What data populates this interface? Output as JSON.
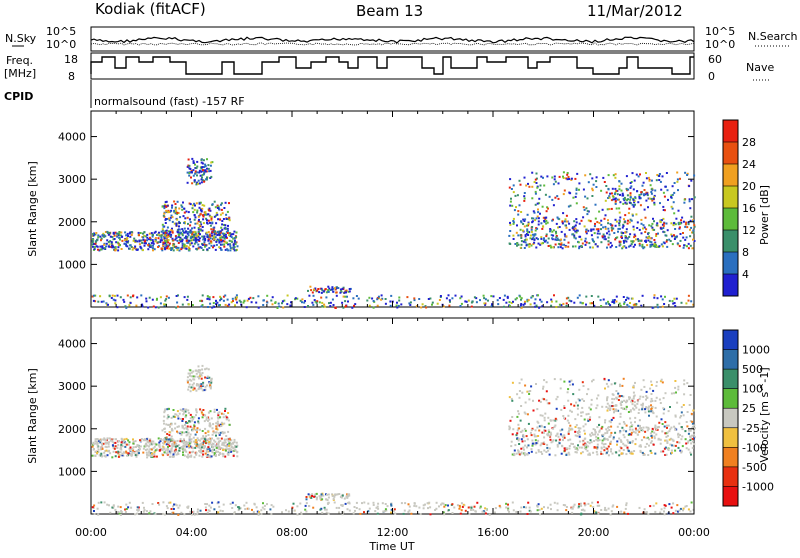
{
  "header": {
    "station": "Kodiak (fitACF)",
    "beam": "Beam 13",
    "date": "11/Mar/2012"
  },
  "top_panels": {
    "nsky_label": "N.Sky",
    "nsearch_label": "N.Search",
    "noise_ticks": [
      "10^5",
      "10^0"
    ],
    "freq_label": "Freq.",
    "freq_unit": "[MHz]",
    "freq_ticks": [
      "18",
      "8"
    ],
    "nave_ticks": [
      "60",
      "0"
    ],
    "nave_label": "Nave",
    "cpid_label": "CPID",
    "cpid_text": "normalsound (fast) -157 RF"
  },
  "chart_data": [
    {
      "type": "heatmap",
      "title": "",
      "xlabel": "Time UT",
      "ylabel": "Slant Range [km]",
      "x_ticks": [
        "00:00",
        "04:00",
        "08:00",
        "12:00",
        "16:00",
        "20:00",
        "00:00"
      ],
      "y_ticks": [
        1000,
        2000,
        3000,
        4000
      ],
      "ylim": [
        0,
        4600
      ],
      "colorbar": {
        "label": "Power [dB]",
        "ticks": [
          4,
          8,
          12,
          16,
          20,
          24,
          28
        ],
        "range": [
          0,
          30
        ],
        "colors": [
          "#2020d0",
          "#2a6fbf",
          "#3a8f6a",
          "#5dbb3a",
          "#c8c820",
          "#f0a020",
          "#e85010",
          "#e82010"
        ]
      }
    },
    {
      "type": "heatmap",
      "title": "",
      "xlabel": "Time UT",
      "ylabel": "Slant Range [km]",
      "x_ticks": [
        "00:00",
        "04:00",
        "08:00",
        "12:00",
        "16:00",
        "20:00",
        "00:00"
      ],
      "y_ticks": [
        1000,
        2000,
        3000,
        4000
      ],
      "ylim": [
        0,
        4600
      ],
      "colorbar": {
        "label": "Velocity [m s^-1]",
        "ticks": [
          1000,
          500,
          100,
          25,
          -25,
          -100,
          -500,
          -1000
        ],
        "colors": [
          "#1a3fbf",
          "#2e6ea8",
          "#3a8f6a",
          "#5dbb3a",
          "#c8c8c0",
          "#f0c040",
          "#f08020",
          "#e83010",
          "#e81010"
        ]
      }
    }
  ],
  "x_axis": {
    "label": "Time UT"
  }
}
